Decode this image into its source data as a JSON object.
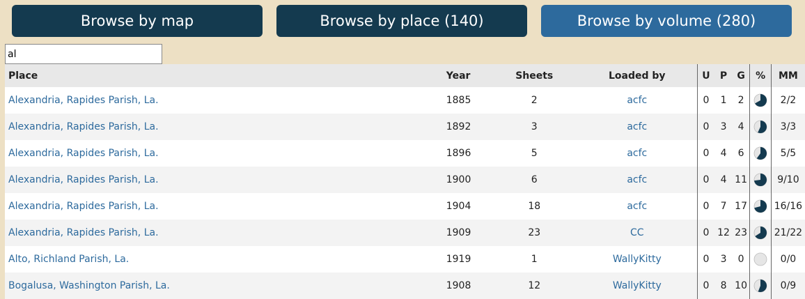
{
  "nav": {
    "map_label": "Browse by map",
    "place_label": "Browse by place (140)",
    "volume_label": "Browse by volume (280)"
  },
  "search": {
    "value": "al"
  },
  "columns": {
    "place": "Place",
    "year": "Year",
    "sheets": "Sheets",
    "loaded_by": "Loaded by",
    "u": "U",
    "p": "P",
    "g": "G",
    "pct": "%",
    "mm": "MM"
  },
  "colors": {
    "pie_fill": "#143a4f",
    "pie_empty": "#e6e6e6",
    "link": "#2d6a9d"
  },
  "rows": [
    {
      "place": "Alexandria, Rapides Parish, La.",
      "year": "1885",
      "sheets": "2",
      "loaded_by": "acfc",
      "u": "0",
      "p": "1",
      "g": "2",
      "pct": 0.67,
      "mm": "2/2"
    },
    {
      "place": "Alexandria, Rapides Parish, La.",
      "year": "1892",
      "sheets": "3",
      "loaded_by": "acfc",
      "u": "0",
      "p": "3",
      "g": "4",
      "pct": 0.57,
      "mm": "3/3"
    },
    {
      "place": "Alexandria, Rapides Parish, La.",
      "year": "1896",
      "sheets": "5",
      "loaded_by": "acfc",
      "u": "0",
      "p": "4",
      "g": "6",
      "pct": 0.6,
      "mm": "5/5"
    },
    {
      "place": "Alexandria, Rapides Parish, La.",
      "year": "1900",
      "sheets": "6",
      "loaded_by": "acfc",
      "u": "0",
      "p": "4",
      "g": "11",
      "pct": 0.73,
      "mm": "9/10"
    },
    {
      "place": "Alexandria, Rapides Parish, La.",
      "year": "1904",
      "sheets": "18",
      "loaded_by": "acfc",
      "u": "0",
      "p": "7",
      "g": "17",
      "pct": 0.71,
      "mm": "16/16"
    },
    {
      "place": "Alexandria, Rapides Parish, La.",
      "year": "1909",
      "sheets": "23",
      "loaded_by": "CC",
      "u": "0",
      "p": "12",
      "g": "23",
      "pct": 0.66,
      "mm": "21/22"
    },
    {
      "place": "Alto, Richland Parish, La.",
      "year": "1919",
      "sheets": "1",
      "loaded_by": "WallyKitty",
      "u": "0",
      "p": "3",
      "g": "0",
      "pct": 0,
      "mm": "0/0"
    },
    {
      "place": "Bogalusa, Washington Parish, La.",
      "year": "1908",
      "sheets": "12",
      "loaded_by": "WallyKitty",
      "u": "0",
      "p": "8",
      "g": "10",
      "pct": 0.56,
      "mm": "0/9"
    }
  ]
}
